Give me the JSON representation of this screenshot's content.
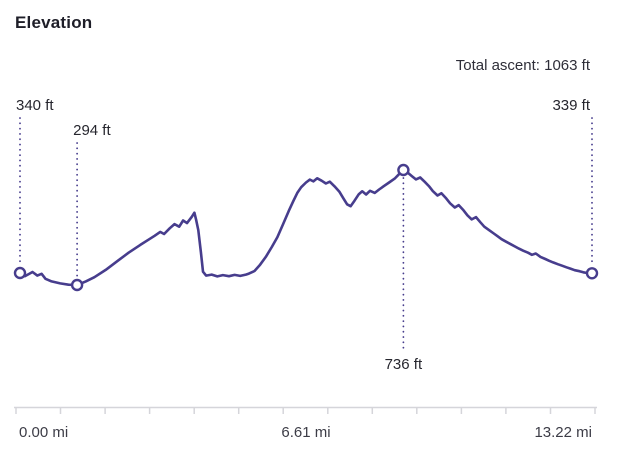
{
  "header": {
    "title": "Elevation",
    "total_ascent": "Total ascent: 1063 ft"
  },
  "chart_data": {
    "type": "line",
    "title": "Elevation",
    "x_unit": "mi",
    "y_unit": "ft",
    "xlim": [
      0,
      13.22
    ],
    "total_ascent_ft": 1063,
    "line_color": "#473d8d",
    "axis_color": "#d5d5da",
    "marker_fill": "#ffffff",
    "x_ticks": [
      {
        "mi": 0,
        "label": "0.00 mi"
      },
      {
        "mi": 6.61,
        "label": "6.61 mi"
      },
      {
        "mi": 13.22,
        "label": "13.22 mi"
      }
    ],
    "markers": [
      {
        "mi": 0.0,
        "ft": 340,
        "label": "340 ft",
        "align": "left",
        "side": "above"
      },
      {
        "mi": 1.32,
        "ft": 294,
        "label": "294 ft",
        "align": "left",
        "side": "above"
      },
      {
        "mi": 8.86,
        "ft": 736,
        "label": "736 ft",
        "align": "center",
        "side": "below"
      },
      {
        "mi": 13.22,
        "ft": 339,
        "label": "339 ft",
        "align": "right",
        "side": "above"
      }
    ],
    "profile": [
      [
        0.0,
        340
      ],
      [
        0.11,
        328
      ],
      [
        0.2,
        336
      ],
      [
        0.29,
        344
      ],
      [
        0.4,
        330
      ],
      [
        0.5,
        337
      ],
      [
        0.59,
        318
      ],
      [
        0.73,
        308
      ],
      [
        0.93,
        300
      ],
      [
        1.12,
        295
      ],
      [
        1.32,
        294
      ],
      [
        1.52,
        308
      ],
      [
        1.72,
        324
      ],
      [
        1.98,
        352
      ],
      [
        2.25,
        386
      ],
      [
        2.51,
        418
      ],
      [
        2.78,
        448
      ],
      [
        2.97,
        468
      ],
      [
        3.11,
        483
      ],
      [
        3.24,
        498
      ],
      [
        3.33,
        490
      ],
      [
        3.46,
        512
      ],
      [
        3.57,
        528
      ],
      [
        3.68,
        518
      ],
      [
        3.77,
        542
      ],
      [
        3.86,
        532
      ],
      [
        3.97,
        556
      ],
      [
        4.03,
        572
      ],
      [
        4.07,
        545
      ],
      [
        4.12,
        505
      ],
      [
        4.18,
        420
      ],
      [
        4.23,
        345
      ],
      [
        4.3,
        330
      ],
      [
        4.43,
        334
      ],
      [
        4.56,
        327
      ],
      [
        4.69,
        332
      ],
      [
        4.83,
        328
      ],
      [
        4.96,
        333
      ],
      [
        5.09,
        329
      ],
      [
        5.22,
        334
      ],
      [
        5.29,
        338
      ],
      [
        5.42,
        348
      ],
      [
        5.55,
        372
      ],
      [
        5.68,
        402
      ],
      [
        5.82,
        440
      ],
      [
        5.95,
        478
      ],
      [
        6.08,
        528
      ],
      [
        6.21,
        578
      ],
      [
        6.32,
        618
      ],
      [
        6.41,
        648
      ],
      [
        6.5,
        670
      ],
      [
        6.61,
        688
      ],
      [
        6.7,
        699
      ],
      [
        6.78,
        692
      ],
      [
        6.87,
        704
      ],
      [
        6.97,
        695
      ],
      [
        7.07,
        684
      ],
      [
        7.16,
        691
      ],
      [
        7.27,
        673
      ],
      [
        7.38,
        653
      ],
      [
        7.47,
        628
      ],
      [
        7.56,
        604
      ],
      [
        7.64,
        597
      ],
      [
        7.73,
        618
      ],
      [
        7.83,
        643
      ],
      [
        7.91,
        654
      ],
      [
        8.0,
        642
      ],
      [
        8.09,
        656
      ],
      [
        8.2,
        648
      ],
      [
        8.3,
        661
      ],
      [
        8.41,
        674
      ],
      [
        8.53,
        688
      ],
      [
        8.66,
        703
      ],
      [
        8.76,
        720
      ],
      [
        8.86,
        736
      ],
      [
        8.96,
        726
      ],
      [
        9.06,
        712
      ],
      [
        9.15,
        700
      ],
      [
        9.25,
        707
      ],
      [
        9.35,
        691
      ],
      [
        9.45,
        674
      ],
      [
        9.54,
        655
      ],
      [
        9.65,
        638
      ],
      [
        9.74,
        647
      ],
      [
        9.85,
        627
      ],
      [
        9.94,
        608
      ],
      [
        10.05,
        592
      ],
      [
        10.14,
        601
      ],
      [
        10.25,
        581
      ],
      [
        10.34,
        562
      ],
      [
        10.44,
        546
      ],
      [
        10.54,
        555
      ],
      [
        10.64,
        535
      ],
      [
        10.73,
        518
      ],
      [
        10.84,
        505
      ],
      [
        10.95,
        492
      ],
      [
        11.04,
        481
      ],
      [
        11.13,
        470
      ],
      [
        11.24,
        460
      ],
      [
        11.34,
        451
      ],
      [
        11.44,
        442
      ],
      [
        11.53,
        434
      ],
      [
        11.63,
        426
      ],
      [
        11.74,
        418
      ],
      [
        11.83,
        410
      ],
      [
        11.92,
        415
      ],
      [
        12.03,
        402
      ],
      [
        12.14,
        394
      ],
      [
        12.23,
        387
      ],
      [
        12.32,
        381
      ],
      [
        12.43,
        374
      ],
      [
        12.53,
        368
      ],
      [
        12.63,
        362
      ],
      [
        12.72,
        357
      ],
      [
        12.82,
        351
      ],
      [
        12.93,
        347
      ],
      [
        13.02,
        343
      ],
      [
        13.11,
        340
      ],
      [
        13.22,
        339
      ]
    ]
  }
}
